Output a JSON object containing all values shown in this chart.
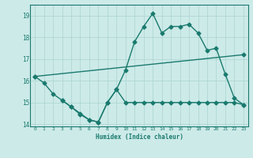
{
  "line1_x": [
    0,
    1,
    2,
    3,
    4,
    5,
    6,
    7,
    8,
    9,
    10,
    11,
    12,
    13,
    14,
    15,
    16,
    17,
    18,
    19,
    20,
    21,
    22,
    23
  ],
  "line1_y": [
    16.2,
    15.9,
    15.4,
    15.1,
    14.8,
    14.5,
    14.2,
    14.1,
    15.0,
    15.6,
    16.5,
    17.8,
    18.5,
    19.1,
    18.2,
    18.5,
    18.5,
    18.6,
    18.2,
    17.4,
    17.5,
    16.3,
    15.2,
    14.9
  ],
  "line2_x": [
    0,
    23
  ],
  "line2_y": [
    16.2,
    17.2
  ],
  "line3_x": [
    3,
    4,
    5,
    6,
    7,
    8,
    9,
    10,
    11,
    12,
    13,
    14,
    15,
    16,
    17,
    18,
    19,
    20,
    21,
    22,
    23
  ],
  "line3_y": [
    15.1,
    14.8,
    14.45,
    14.2,
    14.1,
    15.0,
    15.6,
    15.0,
    15.0,
    15.0,
    15.0,
    15.0,
    15.0,
    15.0,
    15.0,
    15.0,
    15.0,
    15.0,
    15.0,
    15.0,
    14.9
  ],
  "color": "#1a7a6e",
  "bg_color": "#cceae8",
  "grid_color_major": "#aad4d0",
  "grid_color_minor": "#bbdeda",
  "xlabel": "Humidex (Indice chaleur)",
  "ylim": [
    13.9,
    19.5
  ],
  "xlim": [
    -0.5,
    23.5
  ],
  "yticks": [
    14,
    15,
    16,
    17,
    18,
    19
  ],
  "xticks": [
    0,
    1,
    2,
    3,
    4,
    5,
    6,
    7,
    8,
    9,
    10,
    11,
    12,
    13,
    14,
    15,
    16,
    17,
    18,
    19,
    20,
    21,
    22,
    23
  ],
  "marker": "D",
  "markersize": 2.5,
  "linewidth": 1.0
}
